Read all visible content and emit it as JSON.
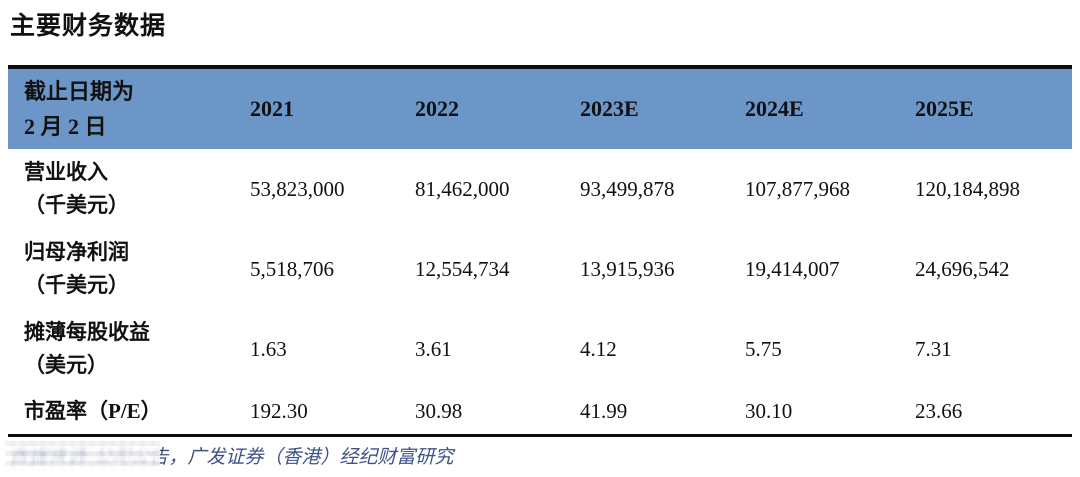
{
  "page_title": "主要财务数据",
  "table": {
    "header": {
      "label_line1": "截止日期为",
      "label_line2": "2 月 2 日",
      "columns": [
        "2021",
        "2022",
        "2023E",
        "2024E",
        "2025E"
      ]
    },
    "rows": [
      {
        "label_line1": "营业收入",
        "label_line2": "（千美元）",
        "values": [
          "53,823,000",
          "81,462,000",
          "93,499,878",
          "107,877,968",
          "120,184,898"
        ]
      },
      {
        "label_line1": "归母净利润",
        "label_line2": "（千美元）",
        "values": [
          "5,518,706",
          "12,554,734",
          "13,915,936",
          "19,414,007",
          "24,696,542"
        ]
      },
      {
        "label_line1": "摊薄每股收益",
        "label_line2": "（美元）",
        "values": [
          "1.63",
          "3.61",
          "4.12",
          "5.75",
          "7.31"
        ]
      },
      {
        "label_line1": "市盈率（P/E）",
        "label_line2": "",
        "values": [
          "192.30",
          "30.98",
          "41.99",
          "30.10",
          "23.66"
        ]
      }
    ]
  },
  "footer": {
    "source_text": "数据来源:公司公告，广发证券（香港）经纪财富研究"
  },
  "colors": {
    "header_bg": "#6D96C8",
    "table_border": "#0D0D0D",
    "body_text": "#111111",
    "footer_text": "#3E5286"
  }
}
